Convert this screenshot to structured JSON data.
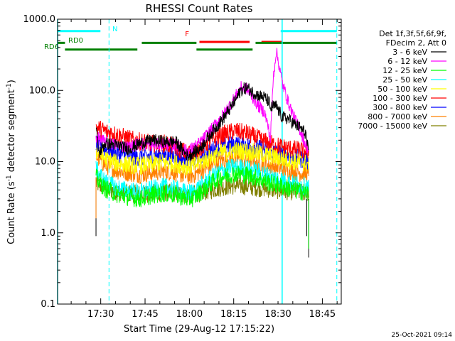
{
  "chart_data": {
    "type": "line",
    "title": "RHESSI Count Rates",
    "xlabel": "Start Time (29-Aug-12 17:15:22)",
    "ylabel_main": "Count Rate (s",
    "ylabel_sup1": "-1",
    "ylabel_mid": " detector segment",
    "ylabel_sup2": "-1",
    "ylabel_end": ")",
    "x_unit": "minutes since 17:15:22",
    "xlim": [
      0,
      96
    ],
    "ylim": [
      0.1,
      1000
    ],
    "yscale": "log",
    "grid": false,
    "xticks": [
      {
        "label": "17:30",
        "x": 14.6
      },
      {
        "label": "17:45",
        "x": 29.6
      },
      {
        "label": "18:00",
        "x": 44.6
      },
      {
        "label": "18:15",
        "x": 59.6
      },
      {
        "label": "18:30",
        "x": 74.6
      },
      {
        "label": "18:45",
        "x": 89.6
      }
    ],
    "yticks": [
      {
        "label": "0.1",
        "value": 0.1
      },
      {
        "label": "1.0",
        "value": 1
      },
      {
        "label": "10.0",
        "value": 10
      },
      {
        "label": "100.0",
        "value": 100
      },
      {
        "label": "1000.0",
        "value": 1000
      }
    ],
    "legend_position": "top-right",
    "legend_header": [
      "Det 1f,3f,5f,6f,9f,",
      "FDecim 2, Att 0"
    ],
    "series": [
      {
        "name": "3 - 6 keV",
        "color": "#000000",
        "x": [
          13,
          14,
          16,
          20,
          24,
          28,
          32,
          36,
          40,
          44,
          48,
          52,
          56,
          60,
          62,
          64,
          66,
          68,
          70,
          71.5,
          72,
          73,
          74,
          75,
          76,
          78,
          80,
          82,
          84,
          85
        ],
        "y": [
          30,
          13,
          18,
          17,
          15,
          18,
          20,
          19,
          19,
          12,
          15,
          25,
          40,
          70,
          100,
          110,
          95,
          85,
          80,
          70,
          55,
          60,
          60,
          50,
          42,
          40,
          34,
          30,
          25,
          12
        ]
      },
      {
        "name": "6 - 12 keV",
        "color": "#ff00ff",
        "x": [
          13,
          16,
          20,
          24,
          28,
          32,
          36,
          40,
          44,
          48,
          52,
          56,
          60,
          62,
          64,
          66,
          68,
          70,
          71.5,
          72,
          73,
          74,
          75,
          76,
          78,
          80,
          82,
          84,
          85
        ],
        "y": [
          22,
          19,
          17,
          16,
          18,
          17,
          18,
          17,
          14,
          18,
          28,
          45,
          80,
          110,
          105,
          80,
          60,
          50,
          28,
          20,
          150,
          360,
          220,
          130,
          70,
          42,
          28,
          17,
          15
        ]
      },
      {
        "name": "12 - 25 keV",
        "color": "#00ff00",
        "x": [
          13,
          16,
          20,
          24,
          28,
          32,
          36,
          40,
          44,
          46,
          48,
          52,
          56,
          60,
          64,
          68,
          72,
          76,
          80,
          84,
          85
        ],
        "y": [
          6,
          4.2,
          3.5,
          3.2,
          3.0,
          3.4,
          3.6,
          3.4,
          3.0,
          3.1,
          3.6,
          5.0,
          6.2,
          6.8,
          6.5,
          5.8,
          5.0,
          4.5,
          4.0,
          3.7,
          3.5
        ]
      },
      {
        "name": "25 - 50 keV",
        "color": "#00ffff",
        "x": [
          13,
          16,
          20,
          24,
          28,
          32,
          36,
          40,
          44,
          46,
          48,
          52,
          56,
          60,
          64,
          68,
          72,
          76,
          80,
          84,
          85
        ],
        "y": [
          8,
          5.2,
          4.3,
          3.9,
          3.7,
          4.1,
          4.4,
          4.1,
          3.6,
          3.8,
          4.4,
          6.0,
          7.6,
          8.4,
          8.0,
          7.2,
          6.2,
          5.5,
          4.9,
          4.5,
          4.3
        ]
      },
      {
        "name": "50 - 100 keV",
        "color": "#ffff00",
        "x": [
          13,
          16,
          20,
          24,
          28,
          32,
          36,
          40,
          44,
          46,
          48,
          52,
          56,
          60,
          64,
          68,
          72,
          76,
          80,
          84,
          85
        ],
        "y": [
          14,
          11,
          9.5,
          9,
          8.8,
          9.3,
          9.8,
          9.3,
          8.5,
          8.8,
          9.6,
          11.5,
          13.5,
          14.5,
          14,
          13,
          12,
          11,
          10,
          9.5,
          9
        ]
      },
      {
        "name": "100 - 300 keV",
        "color": "#ff0000",
        "x": [
          13,
          16,
          20,
          24,
          28,
          32,
          36,
          40,
          44,
          46,
          48,
          52,
          56,
          60,
          64,
          68,
          72,
          76,
          80,
          84,
          85
        ],
        "y": [
          30,
          27,
          24,
          21,
          19,
          18,
          18,
          16,
          13,
          13.5,
          15,
          20,
          24,
          27,
          25,
          21,
          18,
          16,
          15,
          14,
          14
        ]
      },
      {
        "name": "300 - 800 keV",
        "color": "#0000ff",
        "x": [
          13,
          16,
          20,
          24,
          28,
          32,
          36,
          40,
          44,
          46,
          48,
          52,
          56,
          60,
          64,
          68,
          72,
          76,
          80,
          84,
          85
        ],
        "y": [
          18,
          15,
          13,
          12,
          11.5,
          12,
          12.5,
          12,
          10.5,
          10.8,
          12,
          14.5,
          16.5,
          17.5,
          17,
          15.5,
          14,
          12.5,
          11.5,
          10.5,
          10
        ]
      },
      {
        "name": "800 - 7000 keV",
        "color": "#ff8000",
        "x": [
          13,
          16,
          20,
          24,
          28,
          32,
          36,
          40,
          44,
          46,
          48,
          52,
          56,
          60,
          64,
          68,
          72,
          76,
          80,
          84,
          85
        ],
        "y": [
          12,
          9,
          7.5,
          7,
          6.6,
          7,
          7.4,
          7,
          6.3,
          6.5,
          7.2,
          8.8,
          10.5,
          11.2,
          10.8,
          9.8,
          8.8,
          8,
          7.2,
          6.8,
          6.5
        ]
      },
      {
        "name": "7000 - 15000 keV",
        "color": "#808000",
        "x": [
          13,
          16,
          20,
          24,
          28,
          32,
          36,
          40,
          44,
          48,
          52,
          56,
          60,
          64,
          68,
          72,
          76,
          80,
          84,
          85
        ],
        "y": [
          5,
          4.2,
          3.8,
          3.6,
          3.5,
          3.6,
          3.7,
          3.6,
          3.4,
          3.6,
          4.0,
          4.4,
          4.6,
          4.5,
          4.3,
          4.1,
          3.9,
          3.8,
          3.7,
          3.6
        ]
      }
    ],
    "flag_bars": [
      {
        "label": "N",
        "color": "#00ffff",
        "level": 680,
        "segments": [
          [
            0,
            14.5
          ],
          [
            75.5,
            94.5
          ]
        ]
      },
      {
        "label": "F",
        "color": "#ff0000",
        "level": 480,
        "segments": [
          [
            48,
            65
          ],
          [
            69,
            76
          ]
        ]
      },
      {
        "label": "RD0",
        "color": "#008000",
        "level": 465,
        "segments": [
          [
            0,
            2.5
          ],
          [
            28.5,
            47
          ],
          [
            67,
            94.5
          ]
        ]
      },
      {
        "label": "RD6",
        "color": "#008000",
        "level": 375,
        "segments": [
          [
            2.5,
            27
          ],
          [
            47,
            66
          ]
        ]
      }
    ],
    "vlines_solid": [
      {
        "x": 0,
        "color": "#00ffff"
      },
      {
        "x": 76,
        "color": "#00ffff"
      }
    ],
    "vlines_dashed": [
      {
        "x": 17.4,
        "color": "#00ffff"
      },
      {
        "x": 94.5,
        "color": "#00ffff"
      }
    ]
  },
  "timestamp": "25-Oct-2021 09:14"
}
